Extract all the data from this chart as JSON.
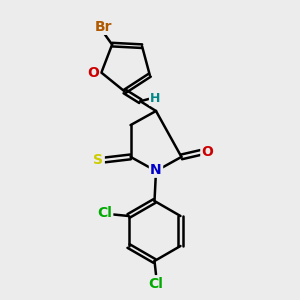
{
  "bg_color": "#ececec",
  "bond_color": "#000000",
  "bond_width": 1.8,
  "atom_colors": {
    "Br": "#b05a00",
    "O": "#cc0000",
    "S_thione": "#cccc00",
    "S_ring": "#cccc00",
    "N": "#0000cc",
    "Cl": "#00aa00",
    "H": "#008888",
    "C": "#000000",
    "O_keto": "#cc0000"
  },
  "font_size": 10,
  "fig_size": [
    3.0,
    3.0
  ],
  "dpi": 100
}
